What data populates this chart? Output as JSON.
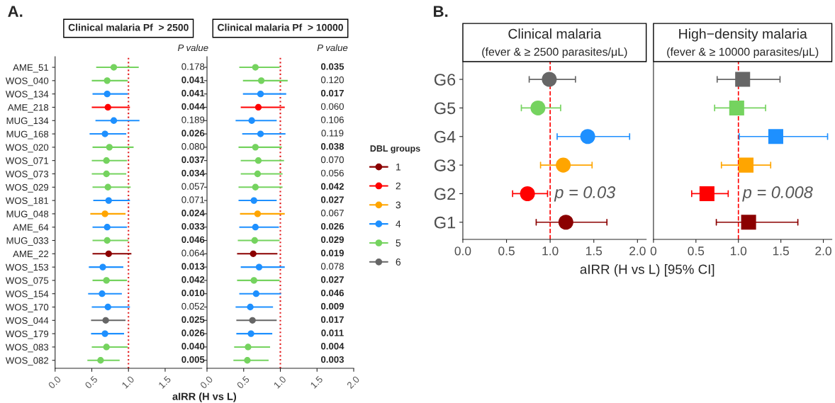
{
  "chart_data": [
    {
      "type": "scatter",
      "orientation": "horizontal",
      "title": "Clinical malaria Pf  > 2500",
      "xlabel": "aIRR (H vs L)",
      "marker": "circle",
      "categories": [
        "AME_51",
        "WOS_040",
        "WOS_134",
        "AME_218",
        "MUG_134",
        "MUG_168",
        "WOS_020",
        "WOS_071",
        "WOS_073",
        "WOS_029",
        "WOS_181",
        "MUG_048",
        "AME_64",
        "MUG_033",
        "AME_22",
        "WOS_153",
        "WOS_075",
        "WOS_154",
        "WOS_170",
        "WOS_044",
        "WOS_179",
        "WOS_083",
        "WOS_082"
      ],
      "values": [
        0.8,
        0.71,
        0.71,
        0.72,
        0.8,
        0.68,
        0.74,
        0.7,
        0.7,
        0.72,
        0.73,
        0.68,
        0.71,
        0.71,
        0.73,
        0.65,
        0.7,
        0.64,
        0.72,
        0.69,
        0.68,
        0.7,
        0.62
      ],
      "errors": [
        [
          0.56,
          1.14
        ],
        [
          0.5,
          0.99
        ],
        [
          0.51,
          0.99
        ],
        [
          0.5,
          1.02
        ],
        [
          0.55,
          1.15
        ],
        [
          0.47,
          0.97
        ],
        [
          0.51,
          1.07
        ],
        [
          0.5,
          0.98
        ],
        [
          0.5,
          0.97
        ],
        [
          0.51,
          1.03
        ],
        [
          0.52,
          1.02
        ],
        [
          0.48,
          0.96
        ],
        [
          0.51,
          0.98
        ],
        [
          0.51,
          1.0
        ],
        [
          0.51,
          1.04
        ],
        [
          0.46,
          0.93
        ],
        [
          0.51,
          0.98
        ],
        [
          0.45,
          0.91
        ],
        [
          0.5,
          1.02
        ],
        [
          0.49,
          0.96
        ],
        [
          0.49,
          0.94
        ],
        [
          0.5,
          0.99
        ],
        [
          0.44,
          0.88
        ]
      ],
      "colors": [
        "#75d35f",
        "#75d35f",
        "#1e90ff",
        "#ff0000",
        "#1e90ff",
        "#1e90ff",
        "#75d35f",
        "#75d35f",
        "#75d35f",
        "#75d35f",
        "#1e90ff",
        "#ffa500",
        "#1e90ff",
        "#75d35f",
        "#8b0000",
        "#1e90ff",
        "#75d35f",
        "#1e90ff",
        "#1e90ff",
        "#666666",
        "#1e90ff",
        "#75d35f",
        "#75d35f"
      ],
      "xlim": [
        0,
        2.0
      ],
      "xticks": [
        {
          "value": 0,
          "label": "0.0"
        },
        {
          "value": 0.5,
          "label": "0.5"
        },
        {
          "value": 1,
          "label": "1.0"
        },
        {
          "value": 1.5,
          "label": "1.5"
        }
      ],
      "ref_lines": [
        {
          "axis": "x",
          "value": 1,
          "color": "#e31a1c",
          "line_style": "dotted"
        }
      ],
      "annotations": [
        "A.",
        "P value",
        "0.178",
        "0.041",
        "0.041",
        "0.044",
        "0.189",
        "0.026",
        "0.080",
        "0.037",
        "0.034",
        "0.057",
        "0.071",
        "0.024",
        "0.033",
        "0.046",
        "0.064",
        "0.013",
        "0.042",
        "0.010",
        "0.052",
        "0.025",
        "0.026",
        "0.040",
        "0.005"
      ]
    },
    {
      "type": "scatter",
      "orientation": "horizontal",
      "title": "Clinical malaria Pf  > 10000",
      "marker": "circle",
      "tick_labels": "x",
      "legend": "right",
      "legend_title": "DBL groups",
      "series": [
        {
          "name": "1",
          "color": "#8b0000",
          "values": [
            null,
            null,
            null,
            null,
            null,
            null,
            null,
            null,
            null,
            null,
            null,
            null,
            null,
            null,
            0.63,
            null,
            null,
            null,
            null,
            null,
            null,
            null,
            null
          ],
          "errors": [
            null,
            null,
            null,
            null,
            null,
            null,
            null,
            null,
            null,
            null,
            null,
            null,
            null,
            null,
            [
              0.41,
              0.96
            ],
            null,
            null,
            null,
            null,
            null,
            null,
            null,
            null
          ]
        },
        {
          "name": "2",
          "color": "#ff0000",
          "values": [
            null,
            null,
            null,
            0.7,
            null,
            null,
            null,
            null,
            null,
            null,
            null,
            null,
            null,
            null,
            null,
            null,
            null,
            null,
            null,
            null,
            null,
            null,
            null
          ],
          "errors": [
            null,
            null,
            null,
            [
              0.46,
              1.06
            ],
            null,
            null,
            null,
            null,
            null,
            null,
            null,
            null,
            null,
            null,
            null,
            null,
            null,
            null,
            null,
            null,
            null,
            null,
            null
          ]
        },
        {
          "name": "3",
          "color": "#ffa500",
          "values": [
            null,
            null,
            null,
            null,
            null,
            null,
            null,
            null,
            null,
            null,
            null,
            0.69,
            null,
            null,
            null,
            null,
            null,
            null,
            null,
            null,
            null,
            null,
            null
          ],
          "errors": [
            null,
            null,
            null,
            null,
            null,
            null,
            null,
            null,
            null,
            null,
            null,
            [
              0.45,
              1.06
            ],
            null,
            null,
            null,
            null,
            null,
            null,
            null,
            null,
            null,
            null,
            null
          ]
        },
        {
          "name": "4",
          "color": "#1e90ff",
          "values": [
            null,
            null,
            0.73,
            null,
            0.61,
            0.73,
            null,
            null,
            null,
            null,
            0.64,
            null,
            0.66,
            null,
            null,
            0.71,
            null,
            0.67,
            0.59,
            null,
            0.6,
            null,
            null
          ],
          "errors": [
            null,
            null,
            [
              0.49,
              1.08
            ],
            null,
            [
              0.39,
              0.95
            ],
            [
              0.48,
              1.07
            ],
            null,
            null,
            null,
            null,
            [
              0.43,
              0.95
            ],
            null,
            [
              0.44,
              0.98
            ],
            null,
            null,
            [
              0.46,
              1.06
            ],
            null,
            [
              0.44,
              1.01
            ],
            [
              0.39,
              0.9
            ],
            null,
            [
              0.4,
              0.89
            ],
            null,
            null
          ]
        },
        {
          "name": "5",
          "color": "#75d35f",
          "values": [
            0.66,
            0.74,
            null,
            null,
            null,
            null,
            0.66,
            0.7,
            0.69,
            0.66,
            null,
            null,
            null,
            0.65,
            null,
            null,
            0.64,
            null,
            null,
            null,
            null,
            0.56,
            0.55
          ],
          "errors": [
            [
              0.44,
              0.99
            ],
            [
              0.49,
              1.1
            ],
            null,
            null,
            null,
            null,
            [
              0.43,
              1.02
            ],
            [
              0.46,
              1.05
            ],
            [
              0.46,
              1.03
            ],
            [
              0.43,
              1.03
            ],
            null,
            null,
            null,
            [
              0.42,
              0.99
            ],
            null,
            null,
            [
              0.41,
              0.99
            ],
            null,
            null,
            null,
            null,
            [
              0.37,
              0.86
            ],
            [
              0.36,
              0.84
            ]
          ]
        },
        {
          "name": "6",
          "color": "#666666",
          "values": [
            null,
            null,
            null,
            null,
            null,
            null,
            null,
            null,
            null,
            null,
            null,
            null,
            null,
            null,
            null,
            null,
            null,
            null,
            null,
            0.62,
            null,
            null,
            null
          ],
          "errors": [
            null,
            null,
            null,
            null,
            null,
            null,
            null,
            null,
            null,
            null,
            null,
            null,
            null,
            null,
            null,
            null,
            null,
            null,
            null,
            [
              0.4,
              0.95
            ],
            null,
            null,
            null
          ]
        }
      ],
      "xlim": [
        0,
        2.0
      ],
      "xticks": [
        {
          "value": 0,
          "label": "0.0"
        },
        {
          "value": 0.5,
          "label": "0.5"
        },
        {
          "value": 1,
          "label": "1.0"
        },
        {
          "value": 1.5,
          "label": "1.5"
        },
        {
          "value": 2,
          "label": "2.0"
        }
      ],
      "ref_lines": [
        {
          "axis": "x",
          "value": 1,
          "color": "#e31a1c",
          "line_style": "dotted"
        }
      ],
      "annotations": [
        "P value",
        "0.035",
        "0.120",
        "0.017",
        "0.060",
        "0.106",
        "0.119",
        "0.038",
        "0.070",
        "0.056",
        "0.042",
        "0.027",
        "0.067",
        "0.026",
        "0.029",
        "0.019",
        "0.078",
        "0.027",
        "0.046",
        "0.009",
        "0.017",
        "0.011",
        "0.004",
        "0.003"
      ]
    },
    {
      "type": "scatter",
      "orientation": "horizontal",
      "title": "Clinical malaria",
      "subtitle": "(fever & ≥ 2500 parasites/μL)",
      "xlabel": "aIRR (H vs L) [95% CI]",
      "marker": "circle",
      "categories": [
        "G6",
        "G5",
        "G4",
        "G3",
        "G2",
        "G1"
      ],
      "values": [
        0.99,
        0.86,
        1.43,
        1.15,
        0.74,
        1.18
      ],
      "errors": [
        [
          0.76,
          1.29
        ],
        [
          0.67,
          1.12
        ],
        [
          1.08,
          1.91
        ],
        [
          0.89,
          1.48
        ],
        [
          0.57,
          0.97
        ],
        [
          0.84,
          1.65
        ]
      ],
      "colors": [
        "#666666",
        "#75d35f",
        "#1e90ff",
        "#ffa500",
        "#ff0000",
        "#8b0000"
      ],
      "xlim": [
        0,
        2.1
      ],
      "xticks": [
        {
          "value": 0,
          "label": "0.0"
        },
        {
          "value": 0.5,
          "label": "0.5"
        },
        {
          "value": 1,
          "label": "1.0"
        },
        {
          "value": 1.5,
          "label": "1.5"
        },
        {
          "value": 2,
          "label": "2.0"
        }
      ],
      "ref_lines": [
        {
          "axis": "x",
          "value": 1,
          "color": "#ff0000",
          "line_style": "dashed"
        }
      ],
      "annotations": [
        "B.",
        "p = 0.03"
      ]
    },
    {
      "type": "scatter",
      "orientation": "horizontal",
      "title": "High−density malaria",
      "subtitle": "(fever & ≥ 10000 parasites/μL)",
      "marker": "square",
      "tick_labels": "x",
      "values": [
        1.05,
        0.98,
        1.44,
        1.09,
        0.63,
        1.12
      ],
      "errors": [
        [
          0.75,
          1.49
        ],
        [
          0.72,
          1.32
        ],
        [
          1.01,
          2.05
        ],
        [
          0.8,
          1.38
        ],
        [
          0.45,
          0.88
        ],
        [
          0.74,
          1.7
        ]
      ],
      "colors": [
        "#666666",
        "#75d35f",
        "#1e90ff",
        "#ffa500",
        "#ff0000",
        "#8b0000"
      ],
      "xlim": [
        0,
        2.1
      ],
      "xticks": [
        {
          "value": 0,
          "label": "0"
        },
        {
          "value": 0.5,
          "label": "0.5"
        },
        {
          "value": 1,
          "label": "1.0"
        },
        {
          "value": 1.5,
          "label": "1.5"
        },
        {
          "value": 2,
          "label": "2.0"
        }
      ],
      "ref_lines": [
        {
          "axis": "x",
          "value": 1,
          "color": "#ff0000",
          "line_style": "dashed"
        }
      ],
      "annotations": [
        "p = 0.008"
      ]
    }
  ]
}
